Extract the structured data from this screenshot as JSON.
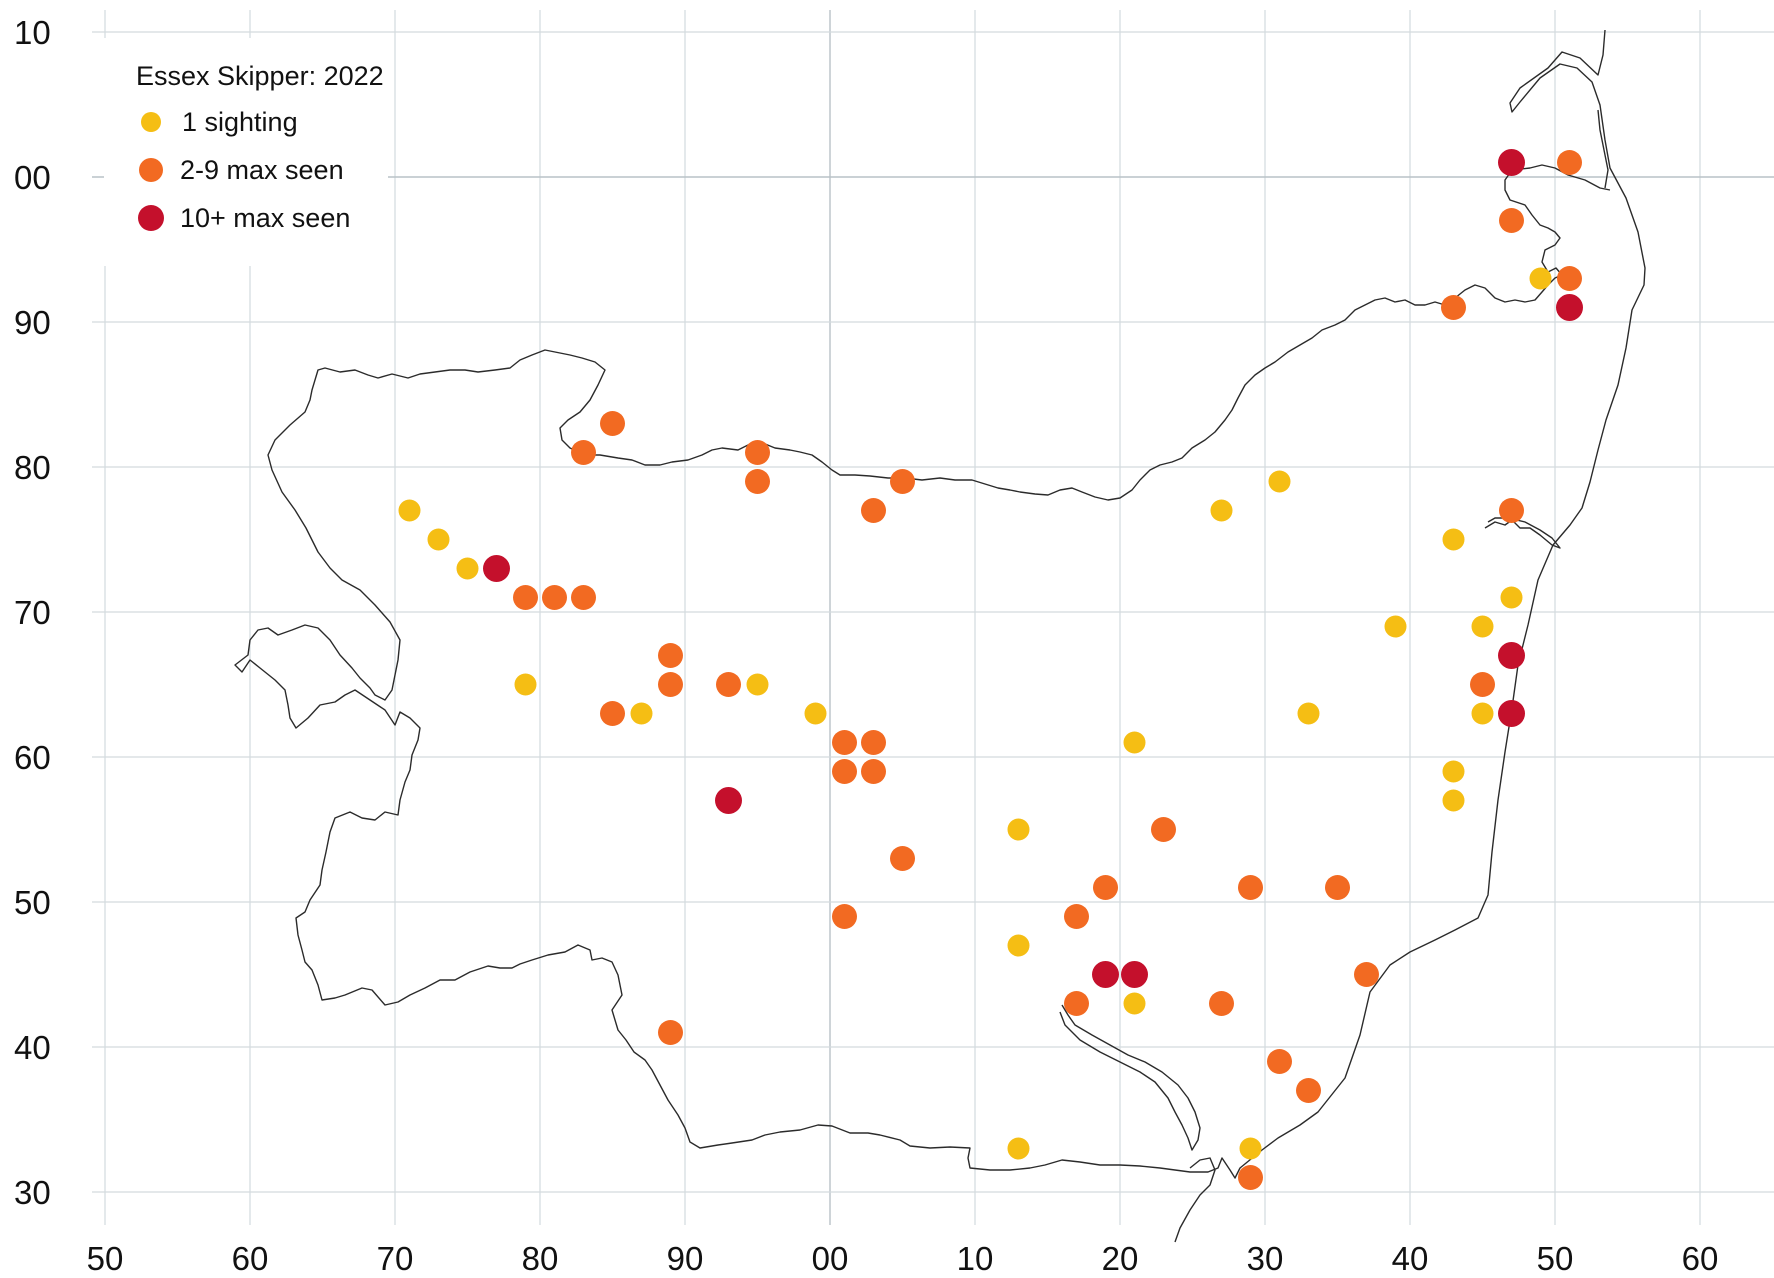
{
  "map": {
    "title": "Essex Skipper:  2022",
    "x_ticks": [
      "50",
      "60",
      "70",
      "80",
      "90",
      "00",
      "10",
      "20",
      "30",
      "40",
      "50",
      "60"
    ],
    "y_ticks": [
      "10",
      "00",
      "90",
      "80",
      "70",
      "60",
      "50",
      "40",
      "30"
    ],
    "legend": [
      {
        "label": "1 sighting",
        "category": "single",
        "color": "#f5be14"
      },
      {
        "label": "2-9 max seen",
        "category": "few",
        "color": "#f26a22"
      },
      {
        "label": "10+ max seen",
        "category": "many",
        "color": "#c4102c"
      }
    ],
    "colors": {
      "single": "#f5be14",
      "few": "#f26a22",
      "many": "#c4102c"
    },
    "sightings": [
      {
        "x": 71,
        "y": 77,
        "c": "single"
      },
      {
        "x": 73,
        "y": 75,
        "c": "single"
      },
      {
        "x": 75,
        "y": 73,
        "c": "single"
      },
      {
        "x": 77,
        "y": 73,
        "c": "many"
      },
      {
        "x": 79,
        "y": 71,
        "c": "few"
      },
      {
        "x": 81,
        "y": 71,
        "c": "few"
      },
      {
        "x": 83,
        "y": 71,
        "c": "few"
      },
      {
        "x": 79,
        "y": 65,
        "c": "single"
      },
      {
        "x": 83,
        "y": 81,
        "c": "few"
      },
      {
        "x": 85,
        "y": 83,
        "c": "few"
      },
      {
        "x": 85,
        "y": 63,
        "c": "few"
      },
      {
        "x": 87,
        "y": 63,
        "c": "single"
      },
      {
        "x": 89,
        "y": 67,
        "c": "few"
      },
      {
        "x": 89,
        "y": 65,
        "c": "few"
      },
      {
        "x": 89,
        "y": 41,
        "c": "few"
      },
      {
        "x": 93,
        "y": 65,
        "c": "few"
      },
      {
        "x": 93,
        "y": 57,
        "c": "many"
      },
      {
        "x": 95,
        "y": 81,
        "c": "few"
      },
      {
        "x": 95,
        "y": 79,
        "c": "few"
      },
      {
        "x": 95,
        "y": 65,
        "c": "single"
      },
      {
        "x": 99,
        "y": 63,
        "c": "single"
      },
      {
        "x": 101,
        "y": 61,
        "c": "few"
      },
      {
        "x": 101,
        "y": 59,
        "c": "few"
      },
      {
        "x": 101,
        "y": 49,
        "c": "few"
      },
      {
        "x": 103,
        "y": 77,
        "c": "few"
      },
      {
        "x": 103,
        "y": 61,
        "c": "few"
      },
      {
        "x": 103,
        "y": 59,
        "c": "few"
      },
      {
        "x": 105,
        "y": 79,
        "c": "few"
      },
      {
        "x": 105,
        "y": 53,
        "c": "few"
      },
      {
        "x": 113,
        "y": 55,
        "c": "single"
      },
      {
        "x": 113,
        "y": 47,
        "c": "single"
      },
      {
        "x": 113,
        "y": 33,
        "c": "single"
      },
      {
        "x": 117,
        "y": 49,
        "c": "few"
      },
      {
        "x": 117,
        "y": 43,
        "c": "few"
      },
      {
        "x": 119,
        "y": 51,
        "c": "few"
      },
      {
        "x": 119,
        "y": 45,
        "c": "many"
      },
      {
        "x": 121,
        "y": 61,
        "c": "single"
      },
      {
        "x": 121,
        "y": 45,
        "c": "many"
      },
      {
        "x": 121,
        "y": 43,
        "c": "single"
      },
      {
        "x": 123,
        "y": 55,
        "c": "few"
      },
      {
        "x": 127,
        "y": 77,
        "c": "single"
      },
      {
        "x": 127,
        "y": 43,
        "c": "few"
      },
      {
        "x": 129,
        "y": 51,
        "c": "few"
      },
      {
        "x": 129,
        "y": 33,
        "c": "single"
      },
      {
        "x": 129,
        "y": 31,
        "c": "few"
      },
      {
        "x": 131,
        "y": 79,
        "c": "single"
      },
      {
        "x": 131,
        "y": 39,
        "c": "few"
      },
      {
        "x": 133,
        "y": 63,
        "c": "single"
      },
      {
        "x": 133,
        "y": 37,
        "c": "few"
      },
      {
        "x": 135,
        "y": 51,
        "c": "few"
      },
      {
        "x": 137,
        "y": 45,
        "c": "few"
      },
      {
        "x": 139,
        "y": 69,
        "c": "single"
      },
      {
        "x": 143,
        "y": 91,
        "c": "few"
      },
      {
        "x": 143,
        "y": 75,
        "c": "single"
      },
      {
        "x": 143,
        "y": 59,
        "c": "single"
      },
      {
        "x": 143,
        "y": 57,
        "c": "single"
      },
      {
        "x": 145,
        "y": 69,
        "c": "single"
      },
      {
        "x": 145,
        "y": 65,
        "c": "few"
      },
      {
        "x": 145,
        "y": 63,
        "c": "single"
      },
      {
        "x": 147,
        "y": 101,
        "c": "many"
      },
      {
        "x": 147,
        "y": 97,
        "c": "few"
      },
      {
        "x": 147,
        "y": 77,
        "c": "few"
      },
      {
        "x": 147,
        "y": 71,
        "c": "single"
      },
      {
        "x": 147,
        "y": 67,
        "c": "many"
      },
      {
        "x": 147,
        "y": 63,
        "c": "many"
      },
      {
        "x": 149,
        "y": 93,
        "c": "single"
      },
      {
        "x": 151,
        "y": 101,
        "c": "few"
      },
      {
        "x": 151,
        "y": 93,
        "c": "few"
      },
      {
        "x": 151,
        "y": 91,
        "c": "many"
      }
    ]
  }
}
